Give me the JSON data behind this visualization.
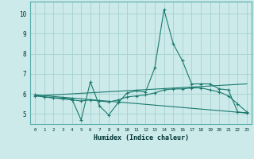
{
  "xlabel": "Humidex (Indice chaleur)",
  "bg_color": "#cceaea",
  "grid_color": "#aad4d4",
  "line_color": "#1a7a6e",
  "xlim_min": -0.5,
  "xlim_max": 23.5,
  "ylim_min": 4.5,
  "ylim_max": 10.6,
  "yticks": [
    5,
    6,
    7,
    8,
    9,
    10
  ],
  "xticks": [
    0,
    1,
    2,
    3,
    4,
    5,
    6,
    7,
    8,
    9,
    10,
    11,
    12,
    13,
    14,
    15,
    16,
    17,
    18,
    19,
    20,
    21,
    22,
    23
  ],
  "series1_x": [
    0,
    1,
    2,
    3,
    4,
    5,
    6,
    7,
    8,
    9,
    10,
    11,
    12,
    13,
    14,
    15,
    16,
    17,
    18,
    19,
    20,
    21,
    22,
    23
  ],
  "series1_y": [
    5.9,
    5.85,
    5.8,
    5.8,
    5.75,
    4.7,
    6.6,
    5.4,
    4.95,
    5.55,
    6.05,
    6.15,
    6.1,
    7.3,
    10.2,
    8.5,
    7.65,
    6.5,
    6.5,
    6.5,
    6.25,
    6.2,
    5.1,
    5.05
  ],
  "series2_x": [
    0,
    1,
    2,
    3,
    4,
    5,
    6,
    7,
    8,
    9,
    10,
    11,
    12,
    13,
    14,
    15,
    16,
    17,
    18,
    19,
    20,
    21,
    22,
    23
  ],
  "series2_y": [
    5.95,
    5.85,
    5.8,
    5.75,
    5.7,
    5.65,
    5.7,
    5.65,
    5.6,
    5.7,
    5.85,
    5.9,
    5.95,
    6.05,
    6.2,
    6.25,
    6.25,
    6.3,
    6.3,
    6.2,
    6.1,
    5.9,
    5.5,
    5.1
  ],
  "series3_x": [
    0,
    23
  ],
  "series3_y": [
    5.95,
    5.05
  ],
  "series4_x": [
    0,
    23
  ],
  "series4_y": [
    5.9,
    6.5
  ]
}
